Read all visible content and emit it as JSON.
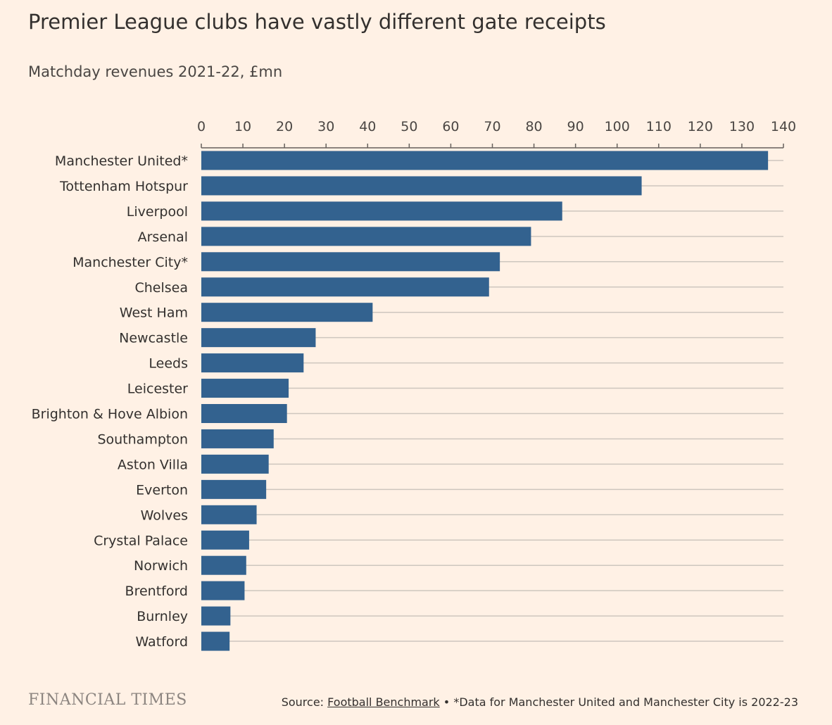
{
  "chart_data": {
    "type": "bar",
    "orientation": "horizontal",
    "title": "Premier League clubs have vastly different gate receipts",
    "subtitle": "Matchday revenues 2021-22, £mn",
    "categories": [
      "Manchester United*",
      "Tottenham Hotspur",
      "Liverpool",
      "Arsenal",
      "Manchester City*",
      "Chelsea",
      "West Ham",
      "Newcastle",
      "Leeds",
      "Leicester",
      "Brighton & Hove Albion",
      "Southampton",
      "Aston Villa",
      "Everton",
      "Wolves",
      "Crystal Palace",
      "Norwich",
      "Brentford",
      "Burnley",
      "Watford"
    ],
    "values": [
      136.3,
      105.9,
      86.8,
      79.3,
      71.8,
      69.2,
      41.2,
      27.5,
      24.6,
      21.0,
      20.6,
      17.4,
      16.2,
      15.6,
      13.3,
      11.5,
      10.8,
      10.4,
      7.0,
      6.8
    ],
    "xlim": [
      0,
      140
    ],
    "xticks": [
      0,
      10,
      20,
      30,
      40,
      50,
      60,
      70,
      80,
      90,
      100,
      110,
      120,
      130,
      140
    ],
    "xaxis_position": "top",
    "grid": true,
    "bar_color": "#33628F",
    "gridline_color": "#CEC6BE",
    "axis_color": "#66605C"
  },
  "footer": {
    "logo": "FINANCIAL TIMES",
    "source_prefix": "Source: ",
    "source_name": "Football Benchmark",
    "source_note": " • *Data for Manchester United and Manchester City is 2022-23"
  },
  "colors": {
    "background": "#FFF1E5",
    "text": "#33302E",
    "logo": "#8C8580"
  }
}
